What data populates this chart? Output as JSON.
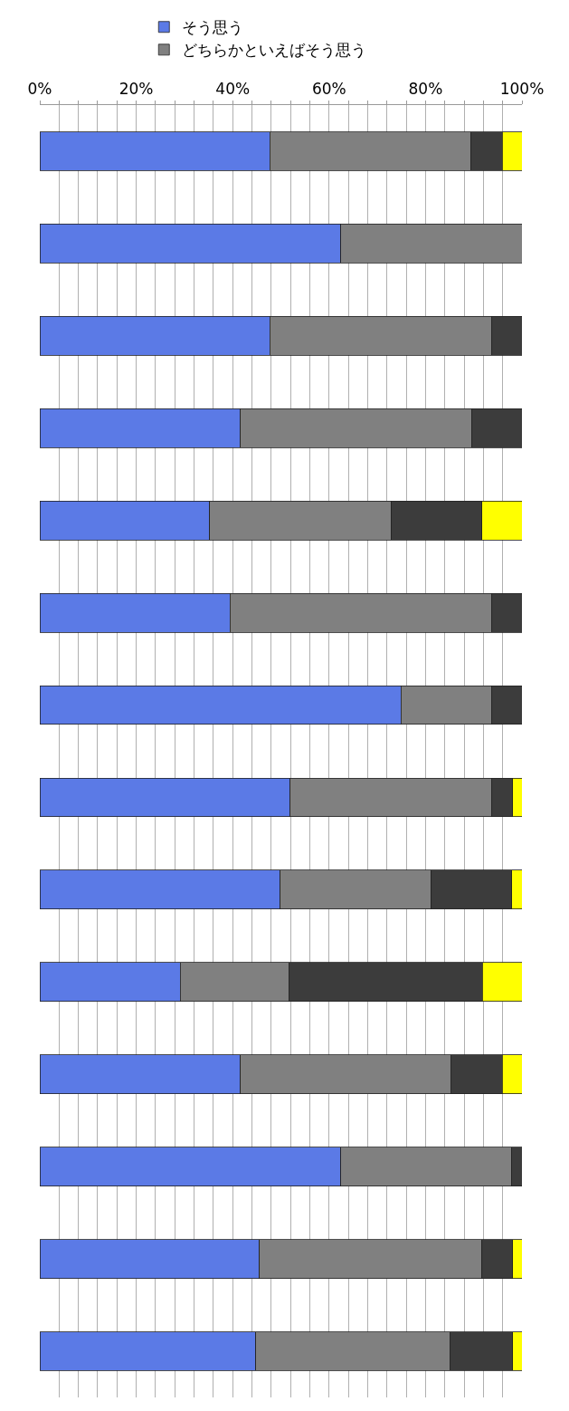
{
  "chart_data": {
    "type": "bar",
    "orientation": "horizontal",
    "stacked": true,
    "categories": [
      null,
      null,
      null,
      null,
      null,
      null,
      null,
      null,
      null,
      null,
      null,
      null,
      null,
      null
    ],
    "series": [
      {
        "name": "そう思う",
        "color": "#5b7ae6",
        "values": [
          47.7,
          62.4,
          47.7,
          41.6,
          35.2,
          39.4,
          74.9,
          51.9,
          49.9,
          29.1,
          41.6,
          62.4,
          45.5,
          44.8
        ]
      },
      {
        "name": "どちらかといえばそう思う",
        "color": "#808080",
        "values": [
          41.7,
          37.6,
          46.0,
          48.0,
          37.7,
          54.3,
          18.8,
          41.8,
          31.3,
          22.5,
          43.6,
          35.5,
          46.2,
          40.2
        ]
      },
      {
        "color": "#3c3c3c",
        "values": [
          6.5,
          0,
          6.3,
          10.4,
          18.8,
          6.3,
          6.3,
          4.4,
          16.7,
          40.2,
          10.7,
          2.1,
          6.4,
          13.1
        ]
      },
      {
        "color": "#ffff00",
        "values": [
          4.1,
          0,
          0,
          0,
          8.3,
          0,
          0,
          1.9,
          2.1,
          8.2,
          4.1,
          0,
          1.9,
          1.9
        ]
      }
    ],
    "xlim": [
      0,
      100
    ],
    "xticks": [
      {
        "value": 0,
        "label": "0%"
      },
      {
        "value": 4,
        "label": null
      },
      {
        "value": 8,
        "label": null
      },
      {
        "value": 12,
        "label": null
      },
      {
        "value": 16,
        "label": null
      },
      {
        "value": 20,
        "label": "20%"
      },
      {
        "value": 24,
        "label": null
      },
      {
        "value": 28,
        "label": null
      },
      {
        "value": 32,
        "label": null
      },
      {
        "value": 36,
        "label": null
      },
      {
        "value": 40,
        "label": "40%"
      },
      {
        "value": 44,
        "label": null
      },
      {
        "value": 48,
        "label": null
      },
      {
        "value": 52,
        "label": null
      },
      {
        "value": 56,
        "label": null
      },
      {
        "value": 60,
        "label": "60%"
      },
      {
        "value": 64,
        "label": null
      },
      {
        "value": 68,
        "label": null
      },
      {
        "value": 72,
        "label": null
      },
      {
        "value": 76,
        "label": null
      },
      {
        "value": 80,
        "label": "80%"
      },
      {
        "value": 84,
        "label": null
      },
      {
        "value": 88,
        "label": null
      },
      {
        "value": 92,
        "label": null
      },
      {
        "value": 96,
        "label": null
      },
      {
        "value": 100,
        "label": "100%"
      }
    ],
    "grid": "x",
    "legend": "top"
  }
}
